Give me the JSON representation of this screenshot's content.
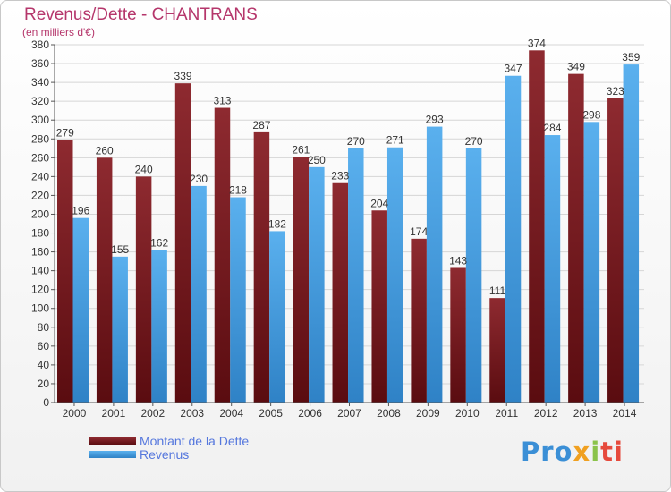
{
  "chart_data": {
    "type": "bar",
    "title": "Revenus/Dette - CHANTRANS",
    "subtitle": "(en milliers d'€)",
    "categories": [
      "2000",
      "2001",
      "2002",
      "2003",
      "2004",
      "2005",
      "2006",
      "2007",
      "2008",
      "2009",
      "2010",
      "2011",
      "2012",
      "2013",
      "2014"
    ],
    "series": [
      {
        "name": "Montant de la Dette",
        "color": "#7a1f24",
        "values": [
          279,
          260,
          240,
          339,
          313,
          287,
          261,
          233,
          204,
          174,
          143,
          111,
          374,
          349,
          323
        ]
      },
      {
        "name": "Revenus",
        "color": "#4aa3e6",
        "values": [
          196,
          155,
          162,
          230,
          218,
          182,
          250,
          270,
          271,
          293,
          270,
          347,
          284,
          298,
          359
        ]
      }
    ],
    "ylim": [
      0,
      380
    ],
    "ytick_step": 20,
    "grid": true,
    "legend_position": "bottom-left"
  },
  "logo": {
    "text": "Proxiti",
    "parts": [
      "Pro",
      "x",
      "i",
      "ti"
    ]
  }
}
